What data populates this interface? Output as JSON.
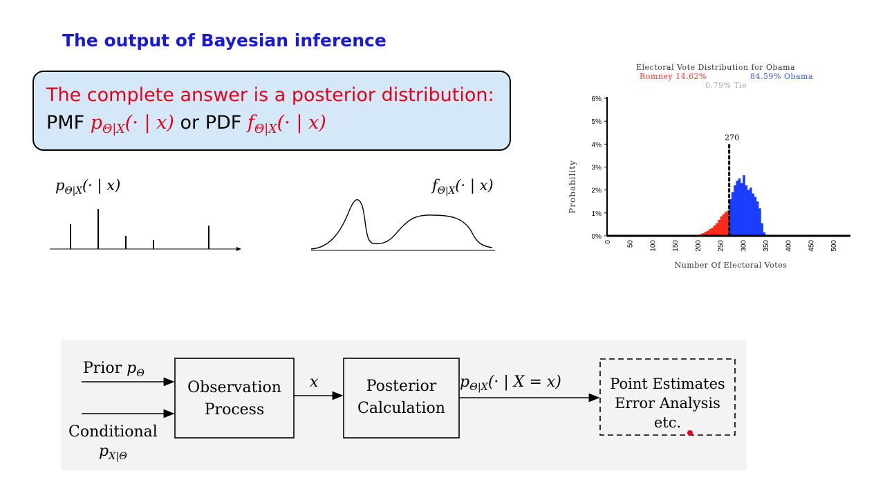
{
  "slide": {
    "title": "The output of Bayesian inference"
  },
  "answer_box": {
    "line1": "The complete answer is a posterior distribution:",
    "pmf_word": "PMF",
    "pmf_sym": "p",
    "pmf_sub": "Θ|X",
    "pmf_arg": "(· | x)",
    "or_word": "or PDF",
    "pdf_sym": "f",
    "pdf_sub": "Θ|X",
    "pdf_arg": "(· | x)"
  },
  "pmf_sketch": {
    "label_sym": "p",
    "label_sub": "Θ|X",
    "label_arg": "(· | x)",
    "stems": [
      {
        "x": 1,
        "h": 0.62
      },
      {
        "x": 2,
        "h": 1.0
      },
      {
        "x": 3,
        "h": 0.33
      },
      {
        "x": 4,
        "h": 0.22
      },
      {
        "x": 6,
        "h": 0.58
      }
    ]
  },
  "pdf_sketch": {
    "label_sym": "f",
    "label_sub": "Θ|X",
    "label_arg": "(· | x)"
  },
  "chart_data": {
    "type": "bar",
    "title": "Electoral Vote Distribution for Obama",
    "legend": {
      "romney": "Romney 14.62%",
      "obama": "84.59% Obama",
      "tie": "0.79% Tie"
    },
    "xlabel": "Number Of Electoral Votes",
    "ylabel": "Probability",
    "xlim": [
      0,
      538
    ],
    "ylim": [
      0,
      6
    ],
    "x_ticks": [
      "0",
      "50",
      "100",
      "150",
      "200",
      "250",
      "300",
      "350",
      "400",
      "450",
      "500"
    ],
    "y_ticks": [
      "0%",
      "1%",
      "2%",
      "3%",
      "4%",
      "5%",
      "6%"
    ],
    "threshold_label": "270",
    "threshold": 270,
    "colors": {
      "romney": "#ff2a1a",
      "obama": "#1a3dff",
      "threshold": "#000000"
    },
    "bins_romney": [
      {
        "x": 200,
        "y": 0.05
      },
      {
        "x": 205,
        "y": 0.08
      },
      {
        "x": 210,
        "y": 0.12
      },
      {
        "x": 215,
        "y": 0.18
      },
      {
        "x": 220,
        "y": 0.22
      },
      {
        "x": 225,
        "y": 0.3
      },
      {
        "x": 230,
        "y": 0.35
      },
      {
        "x": 235,
        "y": 0.45
      },
      {
        "x": 240,
        "y": 0.55
      },
      {
        "x": 245,
        "y": 0.7
      },
      {
        "x": 250,
        "y": 0.85
      },
      {
        "x": 255,
        "y": 0.95
      },
      {
        "x": 260,
        "y": 1.05
      },
      {
        "x": 265,
        "y": 1.1
      }
    ],
    "bins_obama": [
      {
        "x": 270,
        "y": 1.6
      },
      {
        "x": 275,
        "y": 1.9
      },
      {
        "x": 280,
        "y": 2.2
      },
      {
        "x": 285,
        "y": 2.4
      },
      {
        "x": 290,
        "y": 2.5
      },
      {
        "x": 295,
        "y": 2.3
      },
      {
        "x": 300,
        "y": 2.65
      },
      {
        "x": 305,
        "y": 2.2
      },
      {
        "x": 310,
        "y": 2.0
      },
      {
        "x": 315,
        "y": 2.1
      },
      {
        "x": 320,
        "y": 1.85
      },
      {
        "x": 325,
        "y": 1.7
      },
      {
        "x": 330,
        "y": 1.5
      },
      {
        "x": 335,
        "y": 1.2
      },
      {
        "x": 340,
        "y": 0.55
      },
      {
        "x": 345,
        "y": 0.15
      }
    ]
  },
  "flow": {
    "prior": "Prior",
    "prior_sym": "p",
    "prior_sub": "Θ",
    "conditional": "Conditional",
    "cond_sym": "p",
    "cond_sub": "X|Θ",
    "observation_line1": "Observation",
    "observation_line2": "Process",
    "x_label": "x",
    "posterior_line1": "Posterior",
    "posterior_line2": "Calculation",
    "post_sym": "p",
    "post_sub": "Θ|X",
    "post_arg": "(· | X = x)",
    "estimates_line1": "Point Estimates",
    "estimates_line2": "Error Analysis",
    "estimates_line3": "etc."
  }
}
